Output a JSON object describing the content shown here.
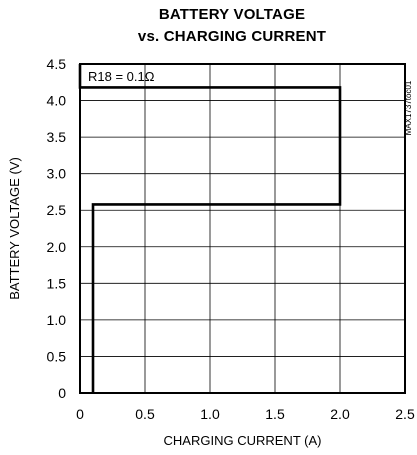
{
  "chart_data": {
    "type": "line",
    "title_line1": "BATTERY VOLTAGE",
    "title_line2": "vs. CHARGING CURRENT",
    "xlabel": "CHARGING CURRENT (A)",
    "ylabel": "BATTERY VOLTAGE (V)",
    "xlim": [
      0,
      2.5
    ],
    "ylim": [
      0,
      4.5
    ],
    "x_ticks": [
      "0",
      "0.5",
      "1.0",
      "1.5",
      "2.0",
      "2.5"
    ],
    "y_ticks": [
      "0",
      "0.5",
      "1.0",
      "1.5",
      "2.0",
      "2.5",
      "3.0",
      "3.5",
      "4.0",
      "4.5"
    ],
    "grid": true,
    "annotation": "R18 = 0.1Ω",
    "side_label": "MAX1737toc01",
    "series": [
      {
        "x": [
          0.1,
          0.1,
          2.0,
          2.0,
          0,
          0
        ],
        "y": [
          0,
          2.58,
          2.58,
          4.18,
          4.18,
          4.5
        ]
      }
    ]
  }
}
